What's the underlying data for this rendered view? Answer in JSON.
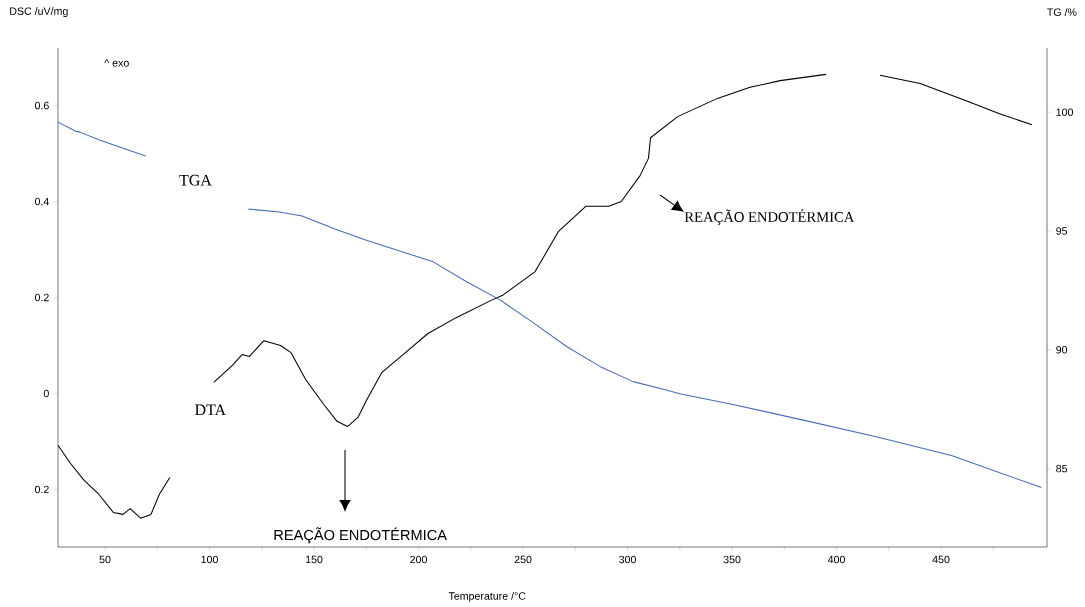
{
  "chart_data": {
    "type": "line",
    "xlabel": "Temperature /°C",
    "ylabel": "DSC /uV/mg",
    "y2label": "TG /%",
    "xlim": [
      27.5,
      500.7
    ],
    "xticks": [
      50,
      {
        "value": 75,
        "label": null
      },
      100,
      {
        "value": 125,
        "label": null
      },
      150,
      {
        "value": 175,
        "label": null
      },
      200,
      {
        "value": 225,
        "label": null
      },
      250,
      {
        "value": 275,
        "label": null
      },
      300,
      {
        "value": 325,
        "label": null
      },
      350,
      {
        "value": 375,
        "label": null
      },
      400,
      {
        "value": 425,
        "label": null
      },
      450,
      {
        "value": 475,
        "label": null
      }
    ],
    "ylim": [
      -0.32,
      0.72
    ],
    "yticks": [
      {
        "value": -0.2,
        "label": "0.2"
      },
      0,
      0.2,
      0.4,
      0.6
    ],
    "y2lim": [
      81.7,
      102.7
    ],
    "y2ticks": [
      85,
      90,
      95,
      100
    ],
    "marker": "none",
    "line_style": "solid",
    "series": [
      {
        "name": "DTA",
        "color": "#000000",
        "axis": "y",
        "x": [
          27.5,
          33.5,
          40,
          47,
          54,
          58.6,
          62,
          67,
          72,
          76,
          81,
          90,
          102,
          110.8,
          115.6,
          119,
          126,
          134,
          139,
          146,
          154.3,
          161,
          166,
          171,
          175,
          182.5,
          192.6,
          204.5,
          218,
          234.7,
          240,
          255.8,
          267,
          280,
          291,
          297,
          306,
          310,
          311,
          324,
          343,
          358.6,
          373,
          395,
          408,
          420.8,
          440,
          462,
          478,
          493.5
        ],
        "values": [
          -0.108,
          -0.146,
          -0.181,
          -0.21,
          -0.248,
          -0.252,
          -0.24,
          -0.26,
          -0.252,
          -0.21,
          -0.175,
          null,
          0.023,
          0.058,
          0.081,
          0.077,
          0.11,
          0.1,
          0.085,
          0.029,
          -0.021,
          -0.058,
          -0.069,
          -0.05,
          -0.015,
          0.044,
          0.081,
          0.125,
          0.158,
          0.194,
          0.204,
          0.254,
          0.338,
          0.39,
          0.39,
          0.4,
          0.454,
          0.49,
          0.533,
          0.577,
          0.615,
          0.638,
          0.652,
          0.665,
          null,
          0.663,
          0.646,
          0.61,
          0.583,
          0.56
        ]
      },
      {
        "name": "TGA",
        "color": "#4a6bb5",
        "axis": "y2",
        "x": [
          27.5,
          36,
          38,
          47.6,
          57,
          69.4,
          90,
          118.7,
          133.5,
          144.3,
          160,
          175.4,
          191,
          207,
          223,
          239,
          255,
          271,
          287,
          302.7,
          319,
          325,
          351,
          383,
          419,
          455,
          498
        ],
        "values": [
          99.58,
          99.2,
          99.16,
          98.82,
          98.53,
          98.15,
          null,
          95.92,
          95.8,
          95.63,
          95.08,
          94.6,
          94.16,
          93.7,
          92.86,
          92.1,
          91.13,
          90.13,
          89.29,
          88.66,
          88.3,
          88.15,
          87.69,
          87.06,
          86.34,
          85.55,
          84.2
        ]
      }
    ],
    "annotations": [
      "^ exo",
      "REAÇÃO ENDOTÉRMICA",
      "REAÇÃO ENDOTÉRMICA"
    ]
  }
}
